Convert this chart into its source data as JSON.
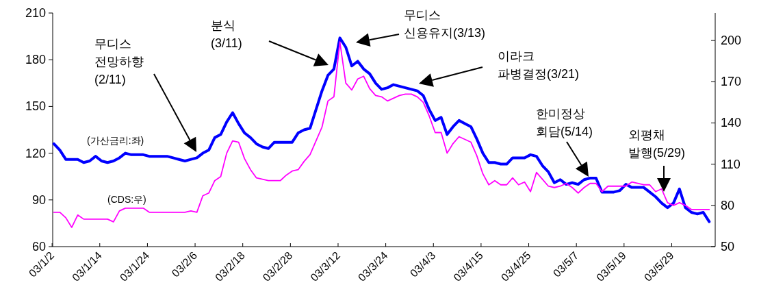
{
  "chart_data": {
    "type": "line",
    "categories": [
      "03/1/2",
      null,
      null,
      null,
      null,
      null,
      null,
      null,
      "03/1/14",
      null,
      null,
      null,
      null,
      null,
      null,
      null,
      "03/1/24",
      null,
      null,
      null,
      null,
      null,
      null,
      null,
      "03/2/6",
      null,
      null,
      null,
      null,
      null,
      null,
      null,
      "03/2/18",
      null,
      null,
      null,
      null,
      null,
      null,
      null,
      "03/2/28",
      null,
      null,
      null,
      null,
      null,
      null,
      null,
      "03/3/12",
      null,
      null,
      null,
      null,
      null,
      null,
      null,
      "03/3/24",
      null,
      null,
      null,
      null,
      null,
      null,
      null,
      "03/4/3",
      null,
      null,
      null,
      null,
      null,
      null,
      null,
      "03/4/15",
      null,
      null,
      null,
      null,
      null,
      null,
      null,
      "03/4/25",
      null,
      null,
      null,
      null,
      null,
      null,
      null,
      "03/5/7",
      null,
      null,
      null,
      null,
      null,
      null,
      null,
      "03/5/19",
      null,
      null,
      null,
      null,
      null,
      null,
      null,
      "03/5/29",
      null,
      null,
      null,
      null,
      null,
      null
    ],
    "series": [
      {
        "name": "(가산금리:좌)",
        "color": "#0000ff",
        "values": [
          126,
          122,
          116,
          116,
          116,
          114,
          115,
          118,
          115,
          114,
          115,
          117,
          120,
          119,
          119,
          119,
          118,
          118,
          118,
          118,
          117,
          116,
          115,
          116,
          117,
          120,
          122,
          130,
          132,
          140,
          146,
          139,
          133,
          130,
          126,
          124,
          123,
          127,
          127,
          127,
          127,
          133,
          135,
          136,
          148,
          160,
          170,
          174,
          194,
          188,
          176,
          179,
          174,
          171,
          165,
          161,
          162,
          164,
          163,
          162,
          161,
          160,
          157,
          148,
          141,
          143,
          132,
          137,
          141,
          139,
          137,
          129,
          120,
          114,
          114,
          113,
          113,
          117,
          117,
          117,
          119,
          118,
          112,
          108,
          101,
          103,
          100,
          101,
          100,
          103,
          104,
          104,
          95,
          95,
          95,
          96,
          100,
          98,
          98,
          98,
          95,
          92,
          88,
          85,
          88,
          97,
          85,
          82,
          81,
          82,
          76
        ]
      },
      {
        "name": "(CDS:우)",
        "color": "#ff00ff",
        "axis": "y2",
        "values": [
          75,
          75,
          71,
          64,
          73,
          70,
          70,
          70,
          70,
          70,
          68,
          76,
          78,
          78,
          78,
          78,
          75,
          75,
          75,
          75,
          75,
          75,
          75,
          76,
          75,
          87,
          89,
          98,
          101,
          118,
          127,
          126,
          114,
          106,
          100,
          99,
          98,
          98,
          98,
          102,
          105,
          106,
          112,
          117,
          127,
          137,
          156,
          159,
          199,
          169,
          164,
          172,
          174,
          165,
          160,
          159,
          156,
          158,
          160,
          161,
          161,
          159,
          155,
          145,
          133,
          133,
          118,
          125,
          130,
          128,
          126,
          116,
          103,
          95,
          98,
          95,
          95,
          100,
          95,
          97,
          90,
          104,
          99,
          94,
          93,
          94,
          96,
          93,
          89,
          93,
          96,
          96,
          90,
          94,
          94,
          94,
          94,
          97,
          96,
          95,
          95,
          90,
          92,
          82,
          80,
          82,
          80,
          77,
          77,
          77,
          77
        ]
      }
    ],
    "ylim": [
      60,
      210
    ],
    "yticks": [
      60,
      90,
      120,
      150,
      180,
      210
    ],
    "y2lim": [
      50,
      220
    ],
    "y2ticks": [
      50,
      80,
      110,
      140,
      170,
      200
    ],
    "grid": false,
    "marker": "none",
    "line_style": "solid",
    "annotations": [
      "무디스\n전망하향\n(2/11)",
      "분식\n(3/11)",
      "무디스\n신용유지(3/13)",
      "이라크\n파병결정(3/21)",
      "한미정상\n회담(5/14)",
      "외평채\n발행(5/29)"
    ]
  }
}
